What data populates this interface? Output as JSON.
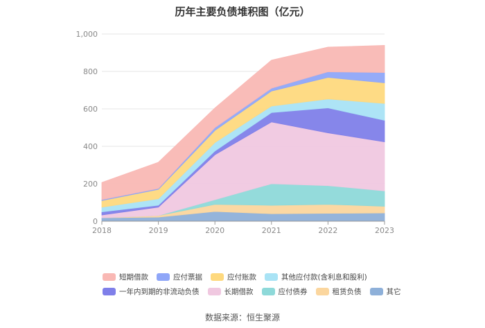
{
  "chart_data": {
    "type": "area",
    "stacked": true,
    "title": "历年主要负债堆积图（亿元）",
    "x": [
      "2018",
      "2019",
      "2020",
      "2021",
      "2022",
      "2023"
    ],
    "ylim": [
      0,
      1000
    ],
    "yticks": [
      "0",
      "200",
      "400",
      "600",
      "800",
      "1,000"
    ],
    "legend_position": "bottom",
    "grid": true,
    "series": [
      {
        "name": "其它",
        "color": "#8eb0d9",
        "values": [
          18,
          22,
          52,
          40,
          42,
          44
        ]
      },
      {
        "name": "租赁负债",
        "color": "#fbd69e",
        "values": [
          0,
          8,
          38,
          45,
          48,
          36
        ]
      },
      {
        "name": "应付债券",
        "color": "#8ed9d9",
        "values": [
          0,
          0,
          25,
          115,
          100,
          82
        ]
      },
      {
        "name": "长期借款",
        "color": "#f0c8e0",
        "values": [
          15,
          45,
          240,
          330,
          282,
          262
        ]
      },
      {
        "name": "一年内到期的非流动负债",
        "color": "#7f7fe9",
        "values": [
          17,
          10,
          20,
          50,
          133,
          115
        ]
      },
      {
        "name": "其他应付款(含利息和股利)",
        "color": "#a9e3f5",
        "values": [
          25,
          35,
          45,
          35,
          48,
          90
        ]
      },
      {
        "name": "应付账款",
        "color": "#fed97e",
        "values": [
          35,
          50,
          65,
          80,
          115,
          110
        ]
      },
      {
        "name": "应付票据",
        "color": "#8fa6f8",
        "values": [
          5,
          5,
          15,
          15,
          30,
          55
        ]
      },
      {
        "name": "短期借款",
        "color": "#f9b8b4",
        "values": [
          92,
          140,
          105,
          150,
          132,
          145
        ]
      }
    ]
  },
  "legend_rows": [
    [
      "短期借款",
      "应付票据",
      "应付账款",
      "其他应付款(含利息和股利)"
    ],
    [
      "一年内到期的非流动负债",
      "长期借款",
      "应付债券",
      "租赁负债",
      "其它"
    ]
  ],
  "source": "数据来源：恒生聚源"
}
